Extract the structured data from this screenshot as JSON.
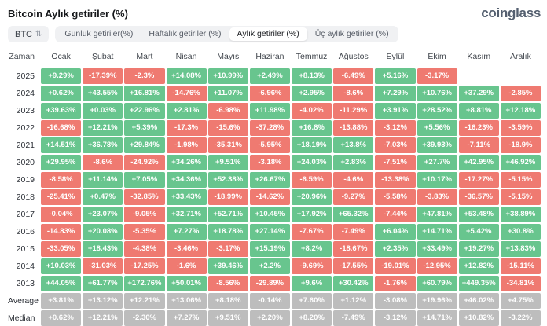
{
  "page": {
    "title": "Bitcoin Aylık getiriler (%)",
    "logo": "coinglass"
  },
  "toolbar": {
    "symbol_selector": {
      "label": "BTC",
      "icon": "sort-arrows"
    },
    "tabs": [
      {
        "label": "Günlük getiriler(%)",
        "active": false
      },
      {
        "label": "Haftalık getiriler (%)",
        "active": false
      },
      {
        "label": "Aylık getiriler (%)",
        "active": true
      },
      {
        "label": "Üç aylık getiriler (%)",
        "active": false
      }
    ]
  },
  "colors": {
    "positive": "#68c58e",
    "negative": "#ef7a71",
    "neutral": "#bdbdbd"
  },
  "chart_data": {
    "type": "heatmap",
    "title": "Bitcoin Aylık getiriler (%)",
    "row_header": "Zaman",
    "columns": [
      "Ocak",
      "Şubat",
      "Mart",
      "Nisan",
      "Mayıs",
      "Haziran",
      "Temmuz",
      "Ağustos",
      "Eylül",
      "Ekim",
      "Kasım",
      "Aralık"
    ],
    "rows": [
      {
        "label": "2025",
        "type": "year",
        "values": [
          "+9.29%",
          "-17.39%",
          "-2.3%",
          "+14.08%",
          "+10.99%",
          "+2.49%",
          "+8.13%",
          "-6.49%",
          "+5.16%",
          "-3.17%",
          "",
          ""
        ]
      },
      {
        "label": "2024",
        "type": "year",
        "values": [
          "+0.62%",
          "+43.55%",
          "+16.81%",
          "-14.76%",
          "+11.07%",
          "-6.96%",
          "+2.95%",
          "-8.6%",
          "+7.29%",
          "+10.76%",
          "+37.29%",
          "-2.85%"
        ]
      },
      {
        "label": "2023",
        "type": "year",
        "values": [
          "+39.63%",
          "+0.03%",
          "+22.96%",
          "+2.81%",
          "-6.98%",
          "+11.98%",
          "-4.02%",
          "-11.29%",
          "+3.91%",
          "+28.52%",
          "+8.81%",
          "+12.18%"
        ]
      },
      {
        "label": "2022",
        "type": "year",
        "values": [
          "-16.68%",
          "+12.21%",
          "+5.39%",
          "-17.3%",
          "-15.6%",
          "-37.28%",
          "+16.8%",
          "-13.88%",
          "-3.12%",
          "+5.56%",
          "-16.23%",
          "-3.59%"
        ]
      },
      {
        "label": "2021",
        "type": "year",
        "values": [
          "+14.51%",
          "+36.78%",
          "+29.84%",
          "-1.98%",
          "-35.31%",
          "-5.95%",
          "+18.19%",
          "+13.8%",
          "-7.03%",
          "+39.93%",
          "-7.11%",
          "-18.9%"
        ]
      },
      {
        "label": "2020",
        "type": "year",
        "values": [
          "+29.95%",
          "-8.6%",
          "-24.92%",
          "+34.26%",
          "+9.51%",
          "-3.18%",
          "+24.03%",
          "+2.83%",
          "-7.51%",
          "+27.7%",
          "+42.95%",
          "+46.92%"
        ]
      },
      {
        "label": "2019",
        "type": "year",
        "values": [
          "-8.58%",
          "+11.14%",
          "+7.05%",
          "+34.36%",
          "+52.38%",
          "+26.67%",
          "-6.59%",
          "-4.6%",
          "-13.38%",
          "+10.17%",
          "-17.27%",
          "-5.15%"
        ]
      },
      {
        "label": "2018",
        "type": "year",
        "values": [
          "-25.41%",
          "+0.47%",
          "-32.85%",
          "+33.43%",
          "-18.99%",
          "-14.62%",
          "+20.96%",
          "-9.27%",
          "-5.58%",
          "-3.83%",
          "-36.57%",
          "-5.15%"
        ]
      },
      {
        "label": "2017",
        "type": "year",
        "values": [
          "-0.04%",
          "+23.07%",
          "-9.05%",
          "+32.71%",
          "+52.71%",
          "+10.45%",
          "+17.92%",
          "+65.32%",
          "-7.44%",
          "+47.81%",
          "+53.48%",
          "+38.89%"
        ]
      },
      {
        "label": "2016",
        "type": "year",
        "values": [
          "-14.83%",
          "+20.08%",
          "-5.35%",
          "+7.27%",
          "+18.78%",
          "+27.14%",
          "-7.67%",
          "-7.49%",
          "+6.04%",
          "+14.71%",
          "+5.42%",
          "+30.8%"
        ]
      },
      {
        "label": "2015",
        "type": "year",
        "values": [
          "-33.05%",
          "+18.43%",
          "-4.38%",
          "-3.46%",
          "-3.17%",
          "+15.19%",
          "+8.2%",
          "-18.67%",
          "+2.35%",
          "+33.49%",
          "+19.27%",
          "+13.83%"
        ]
      },
      {
        "label": "2014",
        "type": "year",
        "values": [
          "+10.03%",
          "-31.03%",
          "-17.25%",
          "-1.6%",
          "+39.46%",
          "+2.2%",
          "-9.69%",
          "-17.55%",
          "-19.01%",
          "-12.95%",
          "+12.82%",
          "-15.11%"
        ]
      },
      {
        "label": "2013",
        "type": "year",
        "values": [
          "+44.05%",
          "+61.77%",
          "+172.76%",
          "+50.01%",
          "-8.56%",
          "-29.89%",
          "+9.6%",
          "+30.42%",
          "-1.76%",
          "+60.79%",
          "+449.35%",
          "-34.81%"
        ]
      },
      {
        "label": "Average",
        "type": "stat",
        "values": [
          "+3.81%",
          "+13.12%",
          "+12.21%",
          "+13.06%",
          "+8.18%",
          "-0.14%",
          "+7.60%",
          "+1.12%",
          "-3.08%",
          "+19.96%",
          "+46.02%",
          "+4.75%"
        ]
      },
      {
        "label": "Median",
        "type": "stat",
        "values": [
          "+0.62%",
          "+12.21%",
          "-2.30%",
          "+7.27%",
          "+9.51%",
          "+2.20%",
          "+8.20%",
          "-7.49%",
          "-3.12%",
          "+14.71%",
          "+10.82%",
          "-3.22%"
        ]
      }
    ],
    "legend": "green = positive monthly return, red = negative monthly return, gray = aggregate statistic rows"
  }
}
